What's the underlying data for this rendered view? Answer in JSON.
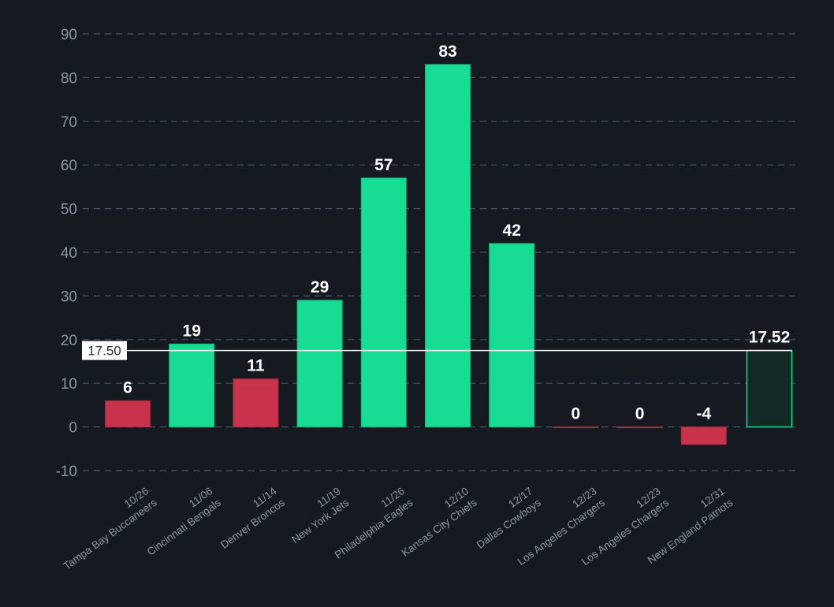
{
  "chart_data": {
    "type": "bar",
    "categories": [
      {
        "date": "10/26",
        "team": "Tampa Bay Buccaneers"
      },
      {
        "date": "11/06",
        "team": "Cincinnati Bengals"
      },
      {
        "date": "11/14",
        "team": "Denver Broncos"
      },
      {
        "date": "11/19",
        "team": "New York Jets"
      },
      {
        "date": "11/26",
        "team": "Philadelphia Eagles"
      },
      {
        "date": "12/10",
        "team": "Kansas City Chiefs"
      },
      {
        "date": "12/17",
        "team": "Dallas Cowboys"
      },
      {
        "date": "12/23",
        "team": "Los Angeles Chargers"
      },
      {
        "date": "12/23",
        "team": "Los Angeles Chargers"
      },
      {
        "date": "12/31",
        "team": "New England Patriots"
      }
    ],
    "values": [
      6,
      19,
      11,
      29,
      57,
      83,
      42,
      0,
      0,
      -4
    ],
    "value_labels": [
      "6",
      "19",
      "11",
      "29",
      "57",
      "83",
      "42",
      "0",
      "0",
      "-4"
    ],
    "summary_bar": {
      "value": 17.52,
      "label": "17.52"
    },
    "reference_line": {
      "value": 17.5,
      "label": "17.50"
    },
    "ylim": [
      -10,
      90
    ],
    "yticks": [
      90,
      80,
      70,
      60,
      50,
      40,
      30,
      20,
      10,
      0,
      -10
    ],
    "grid": true,
    "title": "",
    "xlabel": "",
    "ylabel": "",
    "colors": {
      "background": "#141a20",
      "above_reference": "#16dc94",
      "below_reference": "#c8324a",
      "summary_fill": "#112a24",
      "summary_stroke": "#16dc94",
      "reference_line": "#ffffff"
    }
  }
}
